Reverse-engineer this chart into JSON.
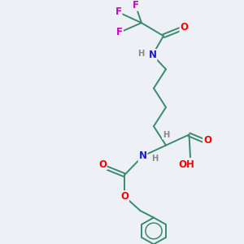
{
  "background_color": "#edf1f5",
  "bond_color": "#3a8a70",
  "atom_colors": {
    "O": "#ff0000",
    "N": "#1a1acc",
    "F": "#cc00cc",
    "H": "#888888",
    "C": "#3a8a70"
  }
}
